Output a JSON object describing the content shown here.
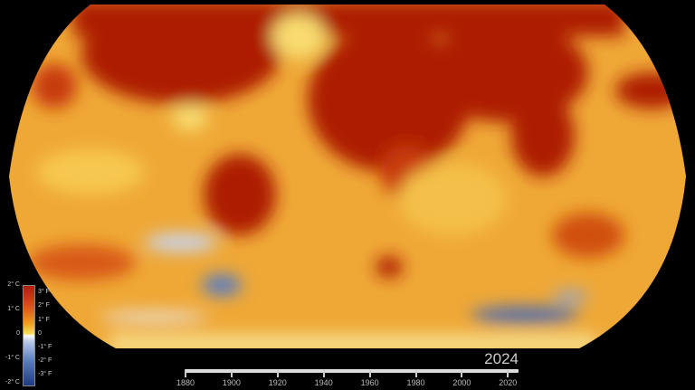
{
  "legend": {
    "celsius": [
      "2° C",
      "1° C",
      "0",
      "-1° C",
      "-2° C"
    ],
    "fahrenheit": [
      "3° F",
      "2° F",
      "1° F",
      "0",
      "-1° F",
      "-2° F",
      "-3° F"
    ],
    "colors": {
      "hot": "#b01d10",
      "warm": "#f0a020",
      "neutral": "#fafafa",
      "cool": "#1d3a80"
    }
  },
  "timeline": {
    "current_year": "2024",
    "ticks": [
      "1880",
      "1900",
      "1920",
      "1940",
      "1960",
      "1980",
      "2000",
      "2020"
    ],
    "range": [
      1880,
      2024
    ]
  },
  "map": {
    "projection": "Robinson",
    "variable": "temperature anomaly"
  }
}
